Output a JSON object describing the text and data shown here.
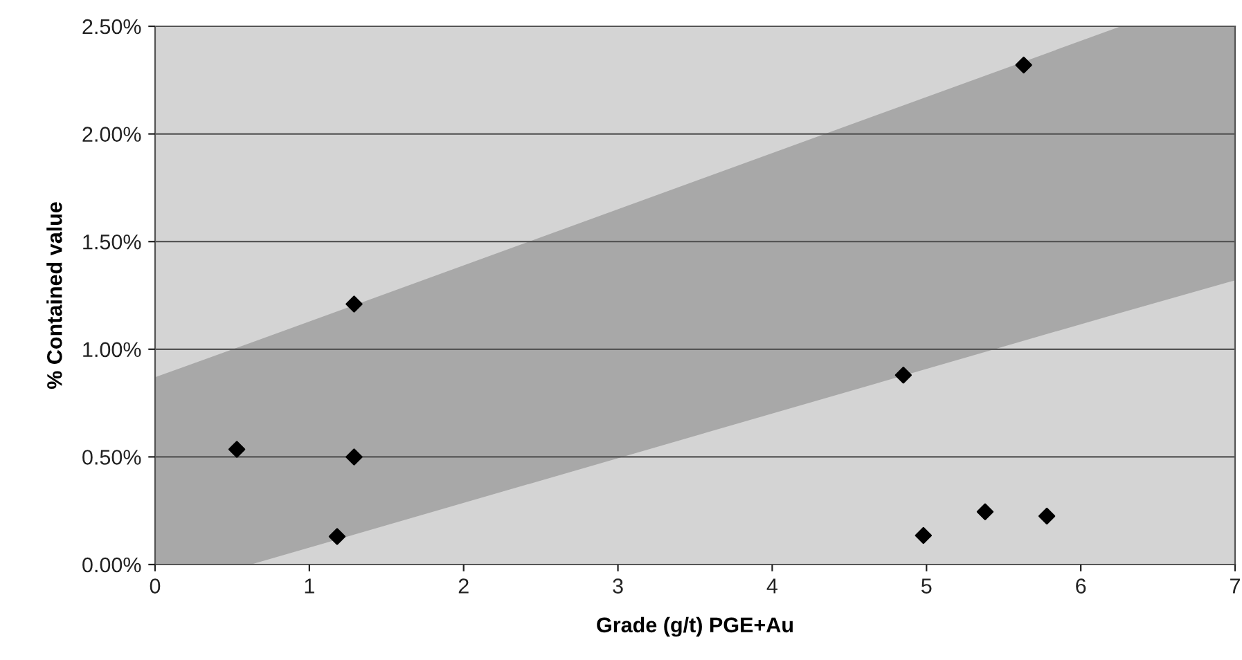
{
  "chart_data": {
    "type": "scatter",
    "xlabel": "Grade (g/t) PGE+Au",
    "ylabel": "% Contained value",
    "xlim": [
      0,
      7
    ],
    "xticks": [
      0,
      1,
      2,
      3,
      4,
      5,
      6,
      7
    ],
    "ylim": [
      0,
      2.5
    ],
    "yticks": [
      {
        "value": 0,
        "label": "0.00%"
      },
      {
        "value": 0.5,
        "label": "0.50%"
      },
      {
        "value": 1.0,
        "label": "1.00%"
      },
      {
        "value": 1.5,
        "label": "1.50%"
      },
      {
        "value": 2.0,
        "label": "2.00%"
      },
      {
        "value": 2.5,
        "label": "2.50%"
      }
    ],
    "grid": "y",
    "marker": "diamond",
    "series": [
      {
        "type": "area",
        "color": "#a8a8a8",
        "marker": "none",
        "x": [
          0,
          0.62,
          6.26,
          7
        ],
        "values": [
          0.87,
          1.03,
          2.5,
          2.5
        ]
      },
      {
        "type": "area",
        "color": "#d4d4d4",
        "marker": "none",
        "x": [
          0,
          0.62,
          6.26,
          7
        ],
        "values": [
          0,
          0,
          1.17,
          1.32
        ]
      },
      {
        "type": "scatter",
        "color": "#000000",
        "x": [
          0.53,
          1.29,
          1.18,
          1.29,
          4.85,
          4.98,
          5.38,
          5.78,
          5.63
        ],
        "values": [
          0.535,
          0.5,
          0.13,
          1.21,
          0.88,
          0.135,
          0.245,
          0.225,
          2.32
        ]
      }
    ]
  }
}
